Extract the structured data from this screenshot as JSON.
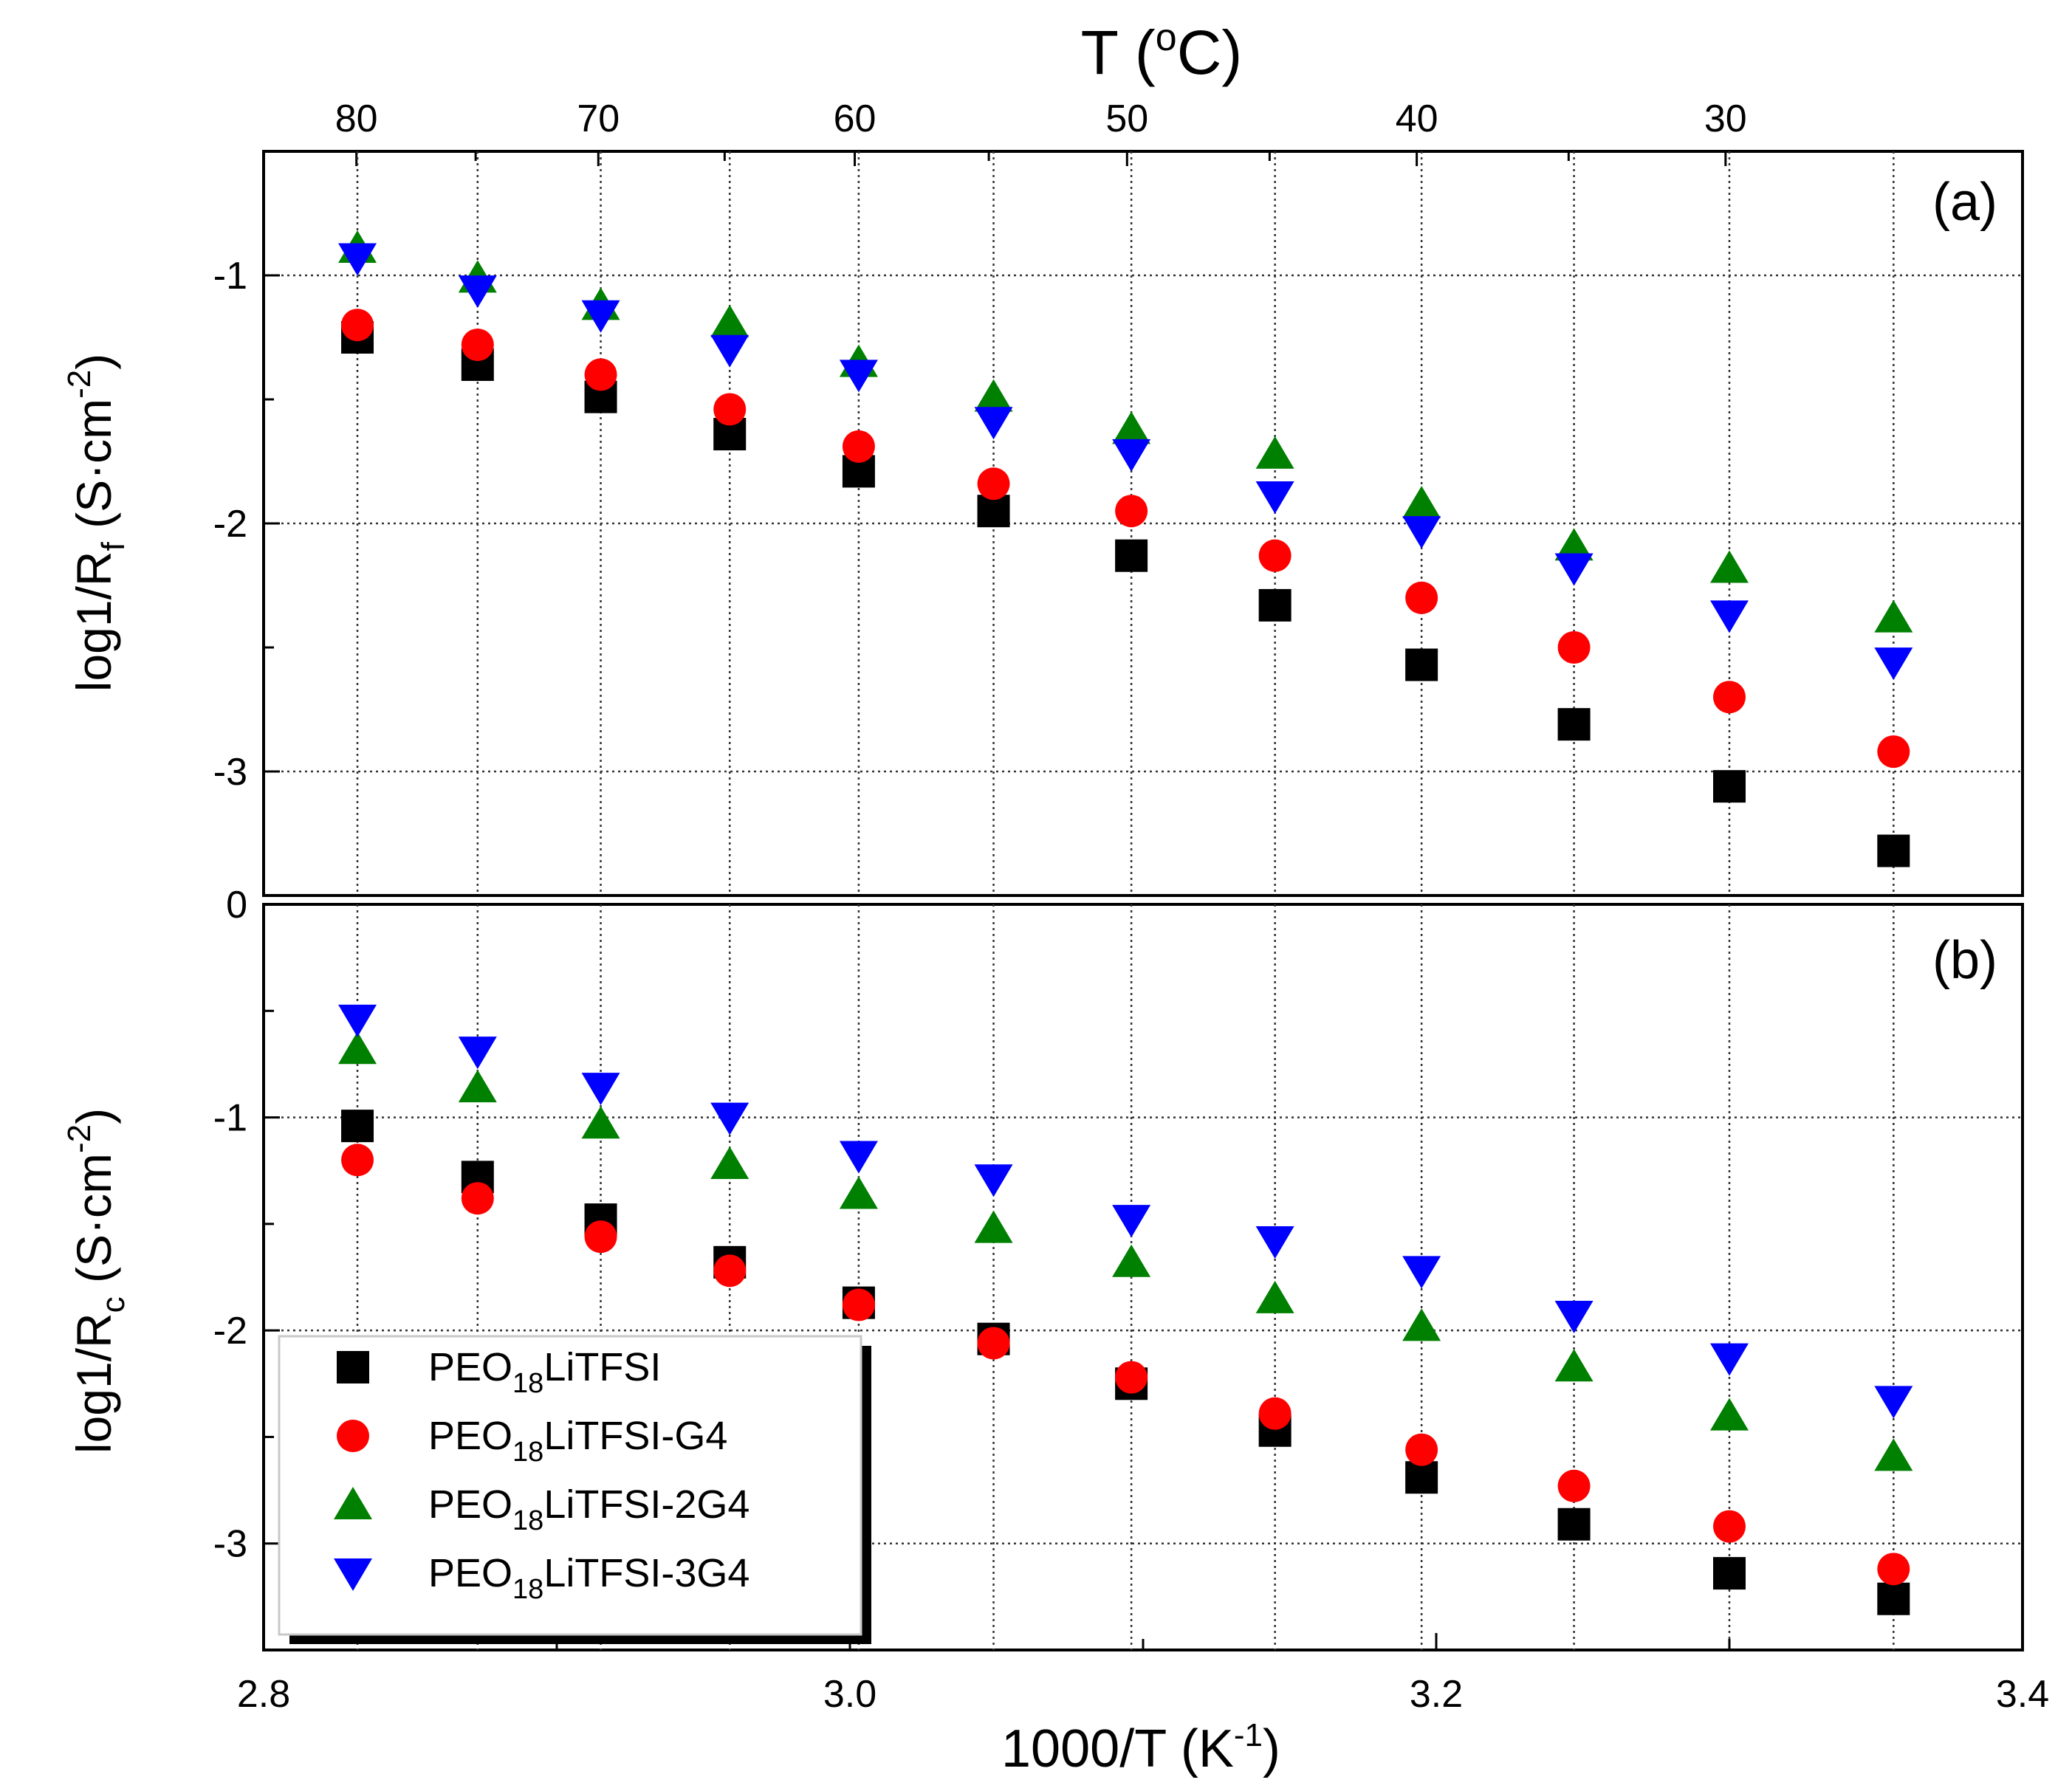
{
  "chart_data": {
    "type": "scatter",
    "xlabel": "1000/T (K",
    "xlabel_sup": "-1",
    "xlabel_end": ")",
    "xlim": [
      2.8,
      3.4
    ],
    "xticks": [
      "2.8",
      "3.0",
      "3.2",
      "3.4"
    ],
    "top_axis": {
      "label_prefix": "T (",
      "label_sup": "o",
      "label_suffix": "C)",
      "ticks": [
        "80",
        "70",
        "60",
        "50",
        "40",
        "30"
      ]
    },
    "x": [
      2.832,
      2.873,
      2.915,
      2.959,
      3.003,
      3.049,
      3.096,
      3.145,
      3.195,
      3.247,
      3.3,
      3.356
    ],
    "legend": [
      {
        "label": "PEO",
        "sub": "18",
        "rest": "LiTFSI"
      },
      {
        "label": "PEO",
        "sub": "18",
        "rest": "LiTFSI-G4"
      },
      {
        "label": "PEO",
        "sub": "18",
        "rest": "LiTFSI-2G4"
      },
      {
        "label": "PEO",
        "sub": "18",
        "rest": "LiTFSI-3G4"
      }
    ],
    "series_style": [
      {
        "color": "#000000",
        "marker": "square"
      },
      {
        "color": "#ff0000",
        "marker": "circle"
      },
      {
        "color": "#008000",
        "marker": "triangle-up"
      },
      {
        "color": "#0000ff",
        "marker": "triangle-down"
      }
    ],
    "panels": [
      {
        "id": "a",
        "label": "(a)",
        "ylabel_main": "log1/R",
        "ylabel_sub": "f",
        "ylabel_unit": " (S·cm",
        "ylabel_sup": "-2",
        "ylabel_end": ")",
        "ylim": [
          -3.5,
          -0.5
        ],
        "yticks": [
          "-1",
          "-2",
          "-3"
        ],
        "series": [
          {
            "name": "PEO18LiTFSI",
            "values": [
              -1.25,
              -1.36,
              -1.49,
              -1.64,
              -1.79,
              -1.95,
              -2.13,
              -2.33,
              -2.57,
              -2.81,
              -3.06,
              -3.32
            ]
          },
          {
            "name": "PEO18LiTFSI-G4",
            "values": [
              -1.2,
              -1.28,
              -1.4,
              -1.54,
              -1.69,
              -1.84,
              -1.95,
              -2.13,
              -2.3,
              -2.5,
              -2.7,
              -2.92
            ]
          },
          {
            "name": "PEO18LiTFSI-2G4",
            "values": [
              -0.89,
              -1.01,
              -1.12,
              -1.19,
              -1.35,
              -1.49,
              -1.62,
              -1.72,
              -1.92,
              -2.09,
              -2.18,
              -2.38
            ]
          },
          {
            "name": "PEO18LiTFSI-3G4",
            "values": [
              -0.93,
              -1.06,
              -1.16,
              -1.3,
              -1.4,
              -1.59,
              -1.72,
              -1.89,
              -2.03,
              -2.18,
              -2.37,
              -2.56
            ]
          }
        ]
      },
      {
        "id": "b",
        "label": "(b)",
        "ylabel_main": "log1/R",
        "ylabel_sub": "c",
        "ylabel_unit": " (S·cm",
        "ylabel_sup": "-2",
        "ylabel_end": ")",
        "ylim": [
          -3.5,
          0
        ],
        "yticks": [
          "0",
          "-1",
          "-2",
          "-3"
        ],
        "series": [
          {
            "name": "PEO18LiTFSI",
            "values": [
              -1.04,
              -1.28,
              -1.48,
              -1.68,
              -1.87,
              -2.04,
              -2.25,
              -2.47,
              -2.69,
              -2.91,
              -3.14,
              -3.26
            ]
          },
          {
            "name": "PEO18LiTFSI-G4",
            "values": [
              -1.2,
              -1.38,
              -1.56,
              -1.72,
              -1.88,
              -2.06,
              -2.22,
              -2.39,
              -2.56,
              -2.73,
              -2.92,
              -3.12
            ]
          },
          {
            "name": "PEO18LiTFSI-2G4",
            "values": [
              -0.68,
              -0.86,
              -1.03,
              -1.22,
              -1.36,
              -1.52,
              -1.68,
              -1.85,
              -1.98,
              -2.17,
              -2.4,
              -2.59
            ]
          },
          {
            "name": "PEO18LiTFSI-3G4",
            "values": [
              -0.54,
              -0.69,
              -0.86,
              -1.0,
              -1.18,
              -1.29,
              -1.48,
              -1.58,
              -1.72,
              -1.93,
              -2.13,
              -2.33
            ]
          }
        ]
      }
    ]
  }
}
